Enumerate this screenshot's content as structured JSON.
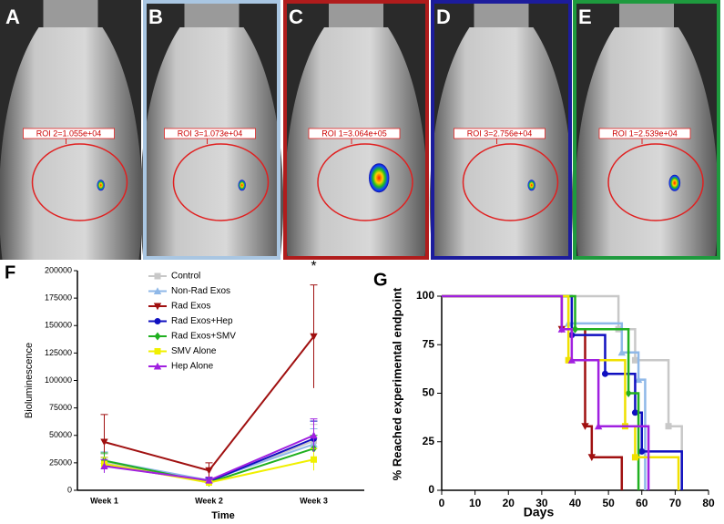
{
  "panels": [
    {
      "label": "A",
      "roi": "ROI 2=1.055e+04",
      "blob": 0.6
    },
    {
      "label": "B",
      "roi": "ROI 3=1.073e+04",
      "border": "#a9c6e2",
      "blob": 0.6
    },
    {
      "label": "C",
      "roi": "ROI 1=3.064e+05",
      "border": "#b01c1c",
      "blob": 1.6
    },
    {
      "label": "D",
      "roi": "ROI 3=2.756e+04",
      "border": "#1c1c9c",
      "blob": 0.6
    },
    {
      "label": "E",
      "roi": "ROI 1=2.539e+04",
      "border": "#1e9a3e",
      "blob": 0.9
    }
  ],
  "chart_data": [
    {
      "type": "line",
      "panel_label": "F",
      "x_label": "Time",
      "y_label": "Bioluminescence",
      "annotation": "*",
      "categories": [
        "Week 1",
        "Week 2",
        "Week 3"
      ],
      "ylim": [
        0,
        200000
      ],
      "yticks": [
        0,
        25000,
        50000,
        75000,
        100000,
        125000,
        150000,
        175000,
        200000
      ],
      "series": [
        {
          "name": "Control",
          "color": "#c8c8c8",
          "marker": "square",
          "values": [
            25000,
            8000,
            45000
          ],
          "errors": [
            8000,
            3000,
            15000
          ]
        },
        {
          "name": "Non-Rad Exos",
          "color": "#8fb8e8",
          "marker": "triangle-up",
          "values": [
            27000,
            9000,
            42000
          ],
          "errors": [
            8000,
            3000,
            14000
          ]
        },
        {
          "name": "Rad Exos",
          "color": "#a01010",
          "marker": "triangle-down",
          "values": [
            44000,
            18000,
            140000
          ],
          "errors": [
            25000,
            7000,
            47000
          ]
        },
        {
          "name": "Rad Exos+Hep",
          "color": "#1010c0",
          "marker": "circle",
          "values": [
            23000,
            8000,
            47000
          ],
          "errors": [
            7000,
            3000,
            16000
          ]
        },
        {
          "name": "Rad Exos+SMV",
          "color": "#20b020",
          "marker": "diamond",
          "values": [
            27000,
            7000,
            38000
          ],
          "errors": [
            7000,
            2000,
            12000
          ]
        },
        {
          "name": "SMV Alone",
          "color": "#f0f000",
          "marker": "square",
          "values": [
            24000,
            7000,
            28000
          ],
          "errors": [
            6000,
            2000,
            10000
          ]
        },
        {
          "name": "Hep Alone",
          "color": "#a020e0",
          "marker": "triangle-up",
          "values": [
            22000,
            9000,
            50000
          ],
          "errors": [
            6000,
            3000,
            15000
          ]
        }
      ]
    },
    {
      "type": "step",
      "panel_label": "G",
      "x_label": "Days",
      "y_label": "% Reached experimental endpoint",
      "xlim": [
        0,
        80
      ],
      "xticks": [
        0,
        10,
        20,
        30,
        40,
        50,
        60,
        70,
        80
      ],
      "ylim": [
        0,
        100
      ],
      "yticks": [
        0,
        25,
        50,
        75,
        100
      ],
      "series": [
        {
          "name": "Control",
          "color": "#c8c8c8",
          "marker": "square",
          "x": [
            0,
            53,
            53,
            58,
            58,
            68,
            68,
            72,
            72
          ],
          "values": [
            100,
            100,
            83,
            83,
            67,
            67,
            33,
            33,
            0
          ]
        },
        {
          "name": "Non-Rad Exos",
          "color": "#8fb8e8",
          "marker": "triangle-up",
          "x": [
            0,
            38,
            38,
            54,
            54,
            59,
            59,
            61,
            61
          ],
          "values": [
            100,
            100,
            86,
            86,
            71,
            71,
            57,
            57,
            0
          ]
        },
        {
          "name": "Rad Exos",
          "color": "#a01010",
          "marker": "triangle-down",
          "x": [
            0,
            36,
            36,
            43,
            43,
            45,
            45,
            54,
            54
          ],
          "values": [
            100,
            100,
            83,
            83,
            33,
            33,
            17,
            17,
            0
          ]
        },
        {
          "name": "Rad Exos+Hep",
          "color": "#1010c0",
          "marker": "circle",
          "x": [
            0,
            39,
            39,
            49,
            49,
            58,
            58,
            60,
            60,
            72,
            72
          ],
          "values": [
            100,
            100,
            80,
            80,
            60,
            60,
            40,
            40,
            20,
            20,
            0
          ]
        },
        {
          "name": "Rad Exos+SMV",
          "color": "#20b020",
          "marker": "diamond",
          "x": [
            0,
            40,
            40,
            56,
            56,
            59,
            59
          ],
          "values": [
            100,
            100,
            83,
            83,
            50,
            50,
            0
          ]
        },
        {
          "name": "SMV Alone",
          "color": "#f0e000",
          "marker": "square",
          "x": [
            0,
            38,
            38,
            55,
            55,
            58,
            58,
            71,
            71
          ],
          "values": [
            100,
            100,
            67,
            67,
            33,
            33,
            17,
            17,
            0
          ]
        },
        {
          "name": "Hep Alone",
          "color": "#a020e0",
          "marker": "triangle-up",
          "x": [
            0,
            36,
            36,
            39,
            39,
            47,
            47,
            62,
            62
          ],
          "values": [
            100,
            100,
            83,
            83,
            67,
            67,
            33,
            33,
            0
          ]
        }
      ]
    }
  ]
}
